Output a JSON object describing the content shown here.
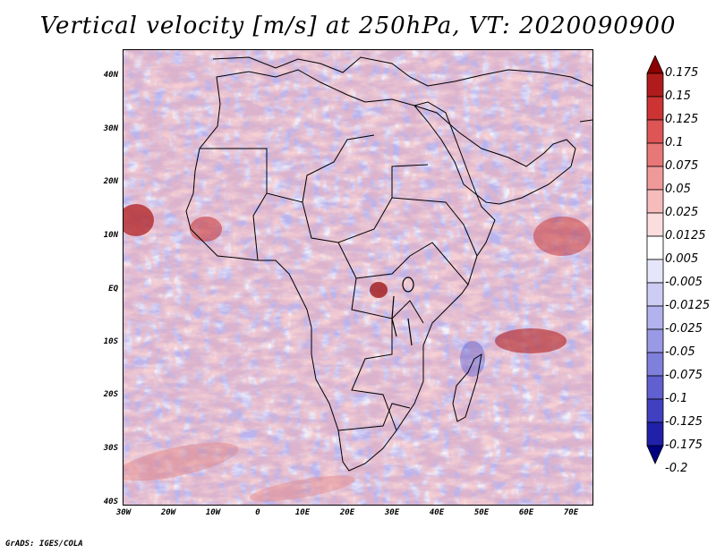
{
  "title": "Vertical velocity [m/s] at 250hPa, VT: 2020090900",
  "footer": "GrADS: IGES/COLA",
  "map": {
    "lat_labels": [
      "40N",
      "30N",
      "20N",
      "10N",
      "EQ",
      "10S",
      "20S",
      "30S",
      "40S"
    ],
    "lon_labels": [
      "30W",
      "20W",
      "10W",
      "0",
      "10E",
      "20E",
      "30E",
      "40E",
      "50E",
      "60E",
      "70E"
    ],
    "lat_range": [
      -40,
      45
    ],
    "lon_range": [
      -30,
      75
    ],
    "colors": {
      "background_field": "#c9c4f2",
      "coastline": "#000000"
    }
  },
  "colorbar": {
    "labels": [
      "0.175",
      "0.15",
      "0.125",
      "0.1",
      "0.075",
      "0.05",
      "0.025",
      "0.0125",
      "0.005",
      "-0.005",
      "-0.0125",
      "-0.025",
      "-0.05",
      "-0.075",
      "-0.1",
      "-0.125",
      "-0.175",
      "-0.2"
    ],
    "colors": [
      "#8b0000",
      "#b01c1c",
      "#cc3333",
      "#dd5555",
      "#e87777",
      "#f09999",
      "#f6bbbb",
      "#fbdddd",
      "#ffffff",
      "#e6e6fa",
      "#ccccf4",
      "#b2b2ee",
      "#9999e6",
      "#7f7fdc",
      "#6060d0",
      "#4040c0",
      "#2020a8",
      "#000080"
    ]
  }
}
